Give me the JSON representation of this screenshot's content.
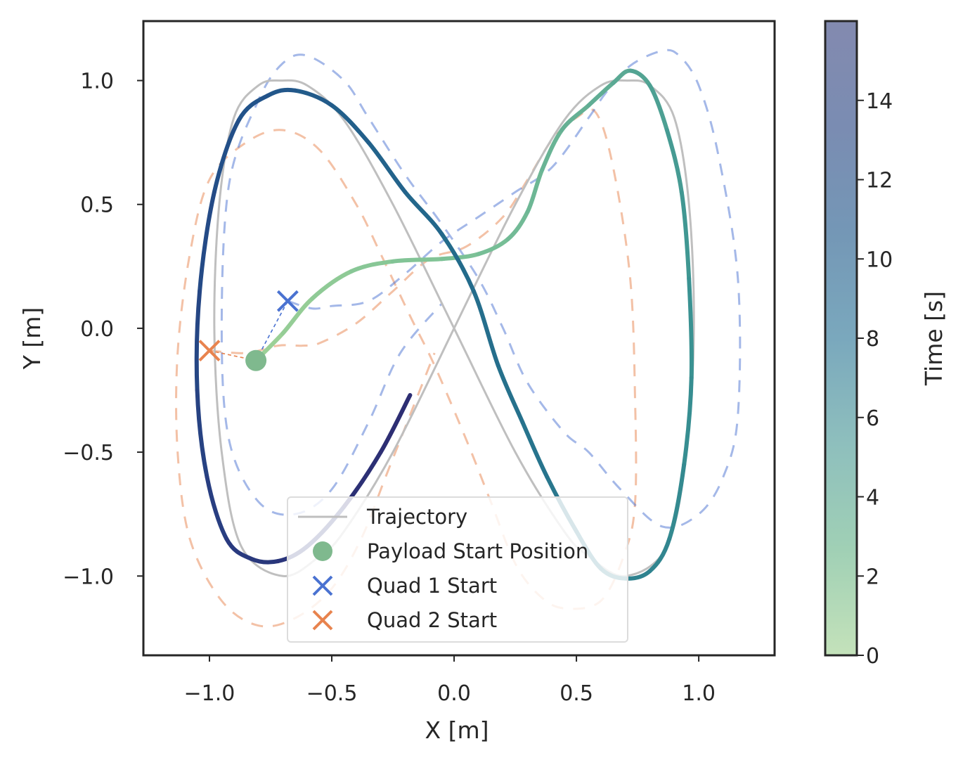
{
  "chart_data": {
    "type": "line",
    "xlabel": "X [m]",
    "ylabel": "Y [m]",
    "xlim": [
      -1.27,
      1.31
    ],
    "ylim": [
      -1.32,
      1.24
    ],
    "xticks": [
      -1.0,
      -0.5,
      0.0,
      0.5,
      1.0
    ],
    "xtick_labels": [
      "−1.0",
      "−0.5",
      "0.0",
      "0.5",
      "1.0"
    ],
    "yticks": [
      -1.0,
      -0.5,
      0.0,
      0.5,
      1.0
    ],
    "ytick_labels": [
      "−1.0",
      "−0.5",
      "0.0",
      "0.5",
      "1.0"
    ],
    "grid": false,
    "legend_position": "bottom-center",
    "legend": [
      {
        "label": "Trajectory",
        "marker": "line",
        "color": "#bfbfbf"
      },
      {
        "label": "Payload Start Position",
        "marker": "circle",
        "color": "#7fb98e"
      },
      {
        "label": "Quad 1 Start",
        "marker": "x",
        "color": "#4a72d1"
      },
      {
        "label": "Quad 2 Start",
        "marker": "x",
        "color": "#e8834e"
      }
    ],
    "colorbar": {
      "label": "Time [s]",
      "range": [
        0,
        16
      ],
      "ticks": [
        0,
        2,
        4,
        6,
        8,
        10,
        12,
        14
      ],
      "tick_labels": [
        "0",
        "2",
        "4",
        "6",
        "8",
        "10",
        "12",
        "14"
      ],
      "colormap": [
        "#c4e2ba",
        "#a0d0b5",
        "#8ebfbd",
        "#7aa8bd",
        "#7497b6",
        "#7a8cb2",
        "#838aaf"
      ]
    },
    "reference_trajectory": {
      "color": "#bfbfbf",
      "points": [
        [
          0.0,
          0.0
        ],
        [
          0.25,
          0.5
        ],
        [
          0.45,
          0.84
        ],
        [
          0.6,
          0.98
        ],
        [
          0.71,
          1.0
        ],
        [
          0.8,
          0.98
        ],
        [
          0.9,
          0.85
        ],
        [
          0.96,
          0.5
        ],
        [
          0.98,
          0.0
        ],
        [
          0.95,
          -0.5
        ],
        [
          0.87,
          -0.88
        ],
        [
          0.7,
          -1.0
        ],
        [
          0.55,
          -0.92
        ],
        [
          0.45,
          -0.82
        ],
        [
          0.25,
          -0.5
        ],
        [
          0.0,
          0.0
        ],
        [
          -0.25,
          0.5
        ],
        [
          -0.45,
          0.84
        ],
        [
          -0.6,
          0.98
        ],
        [
          -0.71,
          1.0
        ],
        [
          -0.8,
          0.98
        ],
        [
          -0.9,
          0.85
        ],
        [
          -0.96,
          0.5
        ],
        [
          -0.98,
          0.0
        ],
        [
          -0.95,
          -0.5
        ],
        [
          -0.87,
          -0.88
        ],
        [
          -0.7,
          -1.0
        ],
        [
          -0.55,
          -0.92
        ],
        [
          -0.45,
          -0.82
        ],
        [
          -0.25,
          -0.5
        ],
        [
          0.0,
          0.0
        ]
      ]
    },
    "payload_path": {
      "time_range": [
        0,
        16
      ],
      "points": [
        [
          -0.81,
          -0.13
        ],
        [
          -0.7,
          -0.02
        ],
        [
          -0.58,
          0.12
        ],
        [
          -0.42,
          0.23
        ],
        [
          -0.25,
          0.27
        ],
        [
          -0.05,
          0.28
        ],
        [
          0.1,
          0.3
        ],
        [
          0.22,
          0.36
        ],
        [
          0.3,
          0.47
        ],
        [
          0.36,
          0.64
        ],
        [
          0.44,
          0.8
        ],
        [
          0.55,
          0.9
        ],
        [
          0.65,
          0.99
        ],
        [
          0.72,
          1.04
        ],
        [
          0.8,
          0.98
        ],
        [
          0.87,
          0.8
        ],
        [
          0.93,
          0.55
        ],
        [
          0.96,
          0.2
        ],
        [
          0.97,
          -0.2
        ],
        [
          0.94,
          -0.55
        ],
        [
          0.88,
          -0.85
        ],
        [
          0.8,
          -0.98
        ],
        [
          0.7,
          -1.01
        ],
        [
          0.6,
          -0.97
        ],
        [
          0.5,
          -0.82
        ],
        [
          0.38,
          -0.6
        ],
        [
          0.28,
          -0.38
        ],
        [
          0.18,
          -0.15
        ],
        [
          0.08,
          0.15
        ],
        [
          -0.05,
          0.38
        ],
        [
          -0.2,
          0.55
        ],
        [
          -0.35,
          0.75
        ],
        [
          -0.5,
          0.9
        ],
        [
          -0.65,
          0.96
        ],
        [
          -0.76,
          0.94
        ],
        [
          -0.88,
          0.84
        ],
        [
          -0.98,
          0.55
        ],
        [
          -1.04,
          0.15
        ],
        [
          -1.05,
          -0.25
        ],
        [
          -1.01,
          -0.6
        ],
        [
          -0.93,
          -0.85
        ],
        [
          -0.83,
          -0.93
        ],
        [
          -0.72,
          -0.94
        ],
        [
          -0.6,
          -0.88
        ],
        [
          -0.45,
          -0.72
        ],
        [
          -0.3,
          -0.5
        ],
        [
          -0.18,
          -0.27
        ]
      ]
    },
    "quad1_path": {
      "color": "#4a72d1",
      "points": [
        [
          -0.68,
          0.11
        ],
        [
          -0.58,
          0.08
        ],
        [
          -0.5,
          0.09
        ],
        [
          -0.35,
          0.11
        ],
        [
          -0.2,
          0.22
        ],
        [
          -0.05,
          0.35
        ],
        [
          0.1,
          0.45
        ],
        [
          0.25,
          0.55
        ],
        [
          0.4,
          0.65
        ],
        [
          0.55,
          0.85
        ],
        [
          0.62,
          0.95
        ],
        [
          0.72,
          1.06
        ],
        [
          0.85,
          1.12
        ],
        [
          0.92,
          1.1
        ],
        [
          1.0,
          0.98
        ],
        [
          1.08,
          0.7
        ],
        [
          1.16,
          0.2
        ],
        [
          1.16,
          -0.35
        ],
        [
          1.1,
          -0.6
        ],
        [
          1.0,
          -0.75
        ],
        [
          0.85,
          -0.8
        ],
        [
          0.68,
          -0.65
        ],
        [
          0.55,
          -0.5
        ],
        [
          0.45,
          -0.42
        ],
        [
          0.3,
          -0.22
        ],
        [
          0.2,
          0.0
        ],
        [
          0.1,
          0.2
        ],
        [
          -0.05,
          0.42
        ],
        [
          -0.2,
          0.62
        ],
        [
          -0.35,
          0.85
        ],
        [
          -0.45,
          1.0
        ],
        [
          -0.6,
          1.1
        ],
        [
          -0.7,
          1.07
        ],
        [
          -0.8,
          0.92
        ],
        [
          -0.92,
          0.58
        ],
        [
          -0.95,
          0.0
        ],
        [
          -0.92,
          -0.45
        ],
        [
          -0.8,
          -0.7
        ],
        [
          -0.65,
          -0.75
        ],
        [
          -0.5,
          -0.65
        ],
        [
          -0.35,
          -0.38
        ],
        [
          -0.22,
          -0.1
        ],
        [
          -0.05,
          0.1
        ]
      ]
    },
    "quad2_path": {
      "color": "#e8834e",
      "points": [
        [
          -1.0,
          -0.09
        ],
        [
          -0.85,
          -0.1
        ],
        [
          -0.72,
          -0.07
        ],
        [
          -0.62,
          -0.07
        ],
        [
          -0.55,
          -0.06
        ],
        [
          -0.4,
          0.02
        ],
        [
          -0.25,
          0.15
        ],
        [
          -0.1,
          0.28
        ],
        [
          0.05,
          0.33
        ],
        [
          0.2,
          0.45
        ],
        [
          0.3,
          0.6
        ],
        [
          0.4,
          0.76
        ],
        [
          0.5,
          0.85
        ],
        [
          0.58,
          0.87
        ],
        [
          0.65,
          0.65
        ],
        [
          0.72,
          0.2
        ],
        [
          0.74,
          -0.3
        ],
        [
          0.74,
          -0.7
        ],
        [
          0.7,
          -0.9
        ],
        [
          0.6,
          -1.1
        ],
        [
          0.45,
          -1.13
        ],
        [
          0.35,
          -1.08
        ],
        [
          0.25,
          -0.95
        ],
        [
          0.15,
          -0.7
        ],
        [
          0.05,
          -0.45
        ],
        [
          -0.08,
          -0.15
        ],
        [
          -0.18,
          0.05
        ],
        [
          -0.3,
          0.3
        ],
        [
          -0.4,
          0.5
        ],
        [
          -0.55,
          0.72
        ],
        [
          -0.7,
          0.8
        ],
        [
          -0.85,
          0.75
        ],
        [
          -1.0,
          0.6
        ],
        [
          -1.08,
          0.3
        ],
        [
          -1.13,
          -0.1
        ],
        [
          -1.13,
          -0.5
        ],
        [
          -1.08,
          -0.85
        ],
        [
          -0.95,
          -1.1
        ],
        [
          -0.8,
          -1.2
        ],
        [
          -0.65,
          -1.17
        ],
        [
          -0.5,
          -1.05
        ],
        [
          -0.38,
          -0.85
        ],
        [
          -0.28,
          -0.6
        ],
        [
          -0.18,
          -0.35
        ],
        [
          -0.08,
          -0.1
        ]
      ]
    },
    "payload_start": {
      "x": -0.81,
      "y": -0.13,
      "color": "#7fb98e"
    },
    "quad1_start": {
      "x": -0.68,
      "y": 0.11,
      "color": "#4a72d1"
    },
    "quad2_start": {
      "x": -1.0,
      "y": -0.09,
      "color": "#e8834e"
    }
  }
}
